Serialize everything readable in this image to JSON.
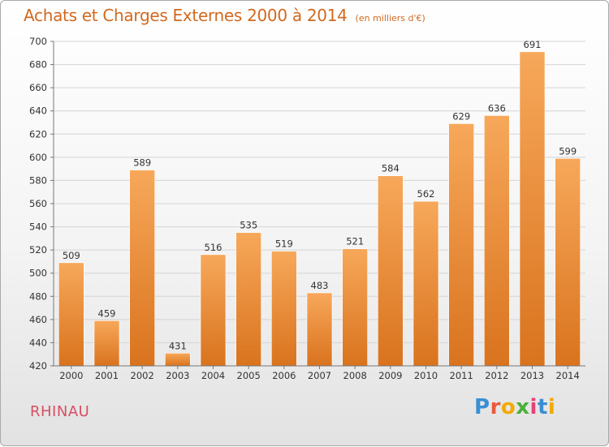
{
  "title": "Achats et Charges Externes 2000 à 2014",
  "unit_label": "(en milliers d'€)",
  "commune": "RHINAU",
  "logo": {
    "text": "Proxiti",
    "letters": [
      "P",
      "r",
      "o",
      "x",
      "i",
      "t",
      "i"
    ],
    "colors": [
      "#3a8fd4",
      "#e95a3a",
      "#f2a900",
      "#4caf3a",
      "#e9407a",
      "#3a8fd4",
      "#f2a900"
    ]
  },
  "colors": {
    "bar_top": "#f7a85a",
    "bar_bottom": "#d9731e",
    "title": "#d2691e",
    "commune": "#d64f63"
  },
  "chart_data": {
    "type": "bar",
    "title": "Achats et Charges Externes 2000 à 2014",
    "categories": [
      "2000",
      "2001",
      "2002",
      "2003",
      "2004",
      "2005",
      "2006",
      "2007",
      "2008",
      "2009",
      "2010",
      "2011",
      "2012",
      "2013",
      "2014"
    ],
    "values": [
      509,
      459,
      589,
      431,
      516,
      535,
      519,
      483,
      521,
      584,
      562,
      629,
      636,
      691,
      599
    ],
    "ylim": [
      420,
      700
    ],
    "yticks": [
      420,
      440,
      460,
      480,
      500,
      520,
      540,
      560,
      580,
      600,
      620,
      640,
      660,
      680,
      700
    ],
    "grid": true
  }
}
